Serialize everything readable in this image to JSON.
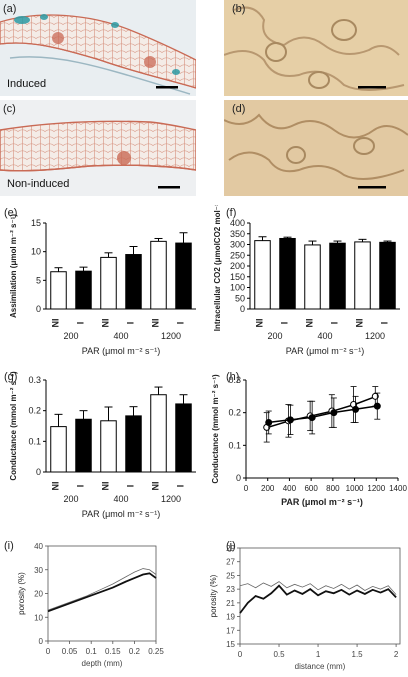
{
  "panels": {
    "a": {
      "label": "(a)",
      "caption": "Induced"
    },
    "b": {
      "label": "(b)"
    },
    "c": {
      "label": "(c)",
      "caption": "Non-induced"
    },
    "d": {
      "label": "(d)"
    },
    "e": {
      "label": "(e)"
    },
    "f": {
      "label": "(f)"
    },
    "g": {
      "label": "(g)"
    },
    "h": {
      "label": "(h)"
    },
    "i": {
      "label": "(i)"
    },
    "j": {
      "label": "(j)"
    }
  },
  "colors": {
    "tissue_red": "#c96a55",
    "stain_blue": "#2a9aa3",
    "epidermis_bg": "#e6cfa6",
    "bar_open": "#ffffff",
    "bar_filled": "#000000"
  },
  "chart_data": [
    {
      "id": "e",
      "type": "bar",
      "ylabel": "Assimilation (μmol m⁻² s⁻¹)",
      "xlabel": "PAR (μmol m⁻² s⁻¹)",
      "categories": [
        "NI",
        "I",
        "NI",
        "I",
        "NI",
        "I"
      ],
      "groups": [
        "200",
        "400",
        "1200"
      ],
      "values": [
        6.5,
        6.6,
        9.0,
        9.5,
        11.8,
        11.5
      ],
      "errors": [
        0.7,
        0.7,
        0.8,
        1.4,
        0.5,
        1.8
      ],
      "fills": [
        "open",
        "filled",
        "open",
        "filled",
        "open",
        "filled"
      ],
      "yticks": [
        0,
        5,
        10,
        15
      ],
      "ylim": [
        0,
        15
      ]
    },
    {
      "id": "f",
      "type": "bar",
      "ylabel": "Intracellular CO2 (μmolCO2 mol⁻¹)",
      "xlabel": "PAR (μmol m⁻² s⁻¹)",
      "categories": [
        "NI",
        "I",
        "NI",
        "I",
        "NI",
        "I"
      ],
      "groups": [
        "200",
        "400",
        "1200"
      ],
      "values": [
        318,
        328,
        298,
        306,
        312,
        310
      ],
      "errors": [
        18,
        6,
        18,
        10,
        12,
        6
      ],
      "fills": [
        "open",
        "filled",
        "open",
        "filled",
        "open",
        "filled"
      ],
      "yticks": [
        0,
        50,
        100,
        150,
        200,
        250,
        300,
        350,
        400
      ],
      "ylim": [
        0,
        400
      ]
    },
    {
      "id": "g",
      "type": "bar",
      "ylabel": "Conductance (mmol m⁻² s⁻¹)",
      "xlabel": "PAR (μmol m⁻² s⁻¹)",
      "categories": [
        "NI",
        "I",
        "NI",
        "I",
        "NI",
        "I"
      ],
      "groups": [
        "200",
        "400",
        "1200"
      ],
      "values": [
        0.148,
        0.172,
        0.167,
        0.183,
        0.252,
        0.222
      ],
      "errors": [
        0.04,
        0.028,
        0.045,
        0.03,
        0.025,
        0.03
      ],
      "fills": [
        "open",
        "filled",
        "open",
        "filled",
        "open",
        "filled"
      ],
      "yticks": [
        0,
        0.1,
        0.2,
        0.3
      ],
      "ylim": [
        0,
        0.3
      ]
    },
    {
      "id": "h",
      "type": "line",
      "ylabel": "Conductance (mmol m⁻² s⁻¹)",
      "xlabel": "PAR (μmol m⁻² s⁻¹)",
      "x": [
        200,
        400,
        600,
        800,
        1000,
        1200
      ],
      "series": [
        {
          "marker": "open",
          "values": [
            0.155,
            0.175,
            0.19,
            0.205,
            0.225,
            0.25
          ],
          "errors": [
            0.045,
            0.05,
            0.045,
            0.05,
            0.055,
            0.03
          ]
        },
        {
          "marker": "filled",
          "values": [
            0.17,
            0.178,
            0.185,
            0.2,
            0.21,
            0.22
          ],
          "errors": [
            0.035,
            0.045,
            0.05,
            0.045,
            0.04,
            0.04
          ]
        }
      ],
      "xticks": [
        0,
        200,
        400,
        600,
        800,
        1000,
        1200,
        1400
      ],
      "xlim": [
        0,
        1400
      ],
      "yticks": [
        0,
        0.1,
        0.2,
        0.3
      ],
      "ylim": [
        0,
        0.3
      ]
    },
    {
      "id": "i",
      "type": "line",
      "ylabel": "porosity (%)",
      "xlabel": "depth (mm)",
      "xticks": [
        0,
        0.05,
        0.1,
        0.15,
        0.2,
        0.25
      ],
      "xlim": [
        0,
        0.25
      ],
      "yticks": [
        0,
        10,
        20,
        30,
        40
      ],
      "ylim": [
        0,
        40
      ],
      "series": [
        {
          "style": "thin",
          "x": [
            0,
            0.03,
            0.06,
            0.09,
            0.12,
            0.15,
            0.18,
            0.2,
            0.22,
            0.235,
            0.25
          ],
          "values": [
            13,
            15,
            17,
            19,
            21.5,
            24,
            27,
            29,
            30.5,
            30,
            28
          ]
        },
        {
          "style": "thick",
          "x": [
            0,
            0.03,
            0.06,
            0.09,
            0.12,
            0.15,
            0.18,
            0.2,
            0.22,
            0.235,
            0.25
          ],
          "values": [
            12.5,
            14.5,
            16.5,
            18.5,
            20.5,
            22.5,
            25,
            26.5,
            28,
            28.5,
            26.5
          ]
        }
      ]
    },
    {
      "id": "j",
      "type": "line",
      "ylabel": "porosity (%)",
      "xlabel": "distance (mm)",
      "xticks": [
        0,
        0.5,
        1,
        1.5,
        2
      ],
      "xlim": [
        0,
        2.05
      ],
      "yticks": [
        15,
        17,
        19,
        21,
        23,
        25,
        27,
        29
      ],
      "ylim": [
        15,
        29
      ],
      "series": [
        {
          "style": "thin",
          "x": [
            0,
            0.1,
            0.2,
            0.3,
            0.4,
            0.5,
            0.6,
            0.7,
            0.8,
            0.9,
            1.0,
            1.1,
            1.2,
            1.3,
            1.4,
            1.5,
            1.6,
            1.7,
            1.8,
            1.9,
            2.0
          ],
          "values": [
            23.5,
            23.8,
            23.2,
            23.9,
            23.4,
            24.1,
            23.2,
            23.7,
            23.3,
            23.8,
            22.9,
            23.5,
            23.1,
            23.7,
            23.0,
            23.6,
            22.8,
            23.4,
            23.0,
            23.5,
            22.2
          ]
        },
        {
          "style": "thick",
          "x": [
            0,
            0.1,
            0.2,
            0.3,
            0.4,
            0.5,
            0.6,
            0.7,
            0.8,
            0.9,
            1.0,
            1.1,
            1.2,
            1.3,
            1.4,
            1.5,
            1.6,
            1.7,
            1.8,
            1.9,
            2.0
          ],
          "values": [
            19.5,
            21.0,
            22.0,
            21.6,
            22.4,
            23.5,
            22.2,
            22.8,
            22.3,
            23.0,
            22.1,
            22.7,
            22.4,
            22.9,
            22.2,
            22.8,
            22.3,
            22.9,
            22.5,
            23.0,
            21.8
          ]
        }
      ]
    }
  ]
}
